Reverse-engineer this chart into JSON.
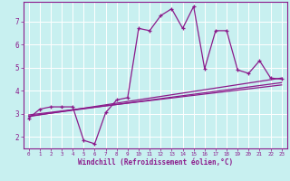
{
  "xlabel": "Windchill (Refroidissement éolien,°C)",
  "xlim": [
    -0.5,
    23.5
  ],
  "ylim": [
    1.5,
    7.85
  ],
  "yticks": [
    2,
    3,
    4,
    5,
    6,
    7
  ],
  "xticks": [
    0,
    1,
    2,
    3,
    4,
    5,
    6,
    7,
    8,
    9,
    10,
    11,
    12,
    13,
    14,
    15,
    16,
    17,
    18,
    19,
    20,
    21,
    22,
    23
  ],
  "bg_color": "#c8f0f0",
  "line_color": "#8b1a8b",
  "grid_color": "#ffffff",
  "main_series_x": [
    0,
    1,
    2,
    3,
    4,
    5,
    6,
    7,
    8,
    9,
    10,
    11,
    12,
    13,
    14,
    15,
    16,
    17,
    18,
    19,
    20,
    21,
    22,
    23
  ],
  "main_series_y": [
    2.8,
    3.2,
    3.3,
    3.3,
    3.3,
    1.85,
    1.7,
    3.05,
    3.6,
    3.7,
    6.7,
    6.6,
    7.25,
    7.55,
    6.7,
    7.65,
    4.95,
    6.6,
    6.6,
    4.9,
    4.75,
    5.3,
    4.55,
    4.5
  ],
  "trend_lines": [
    {
      "x0": 0,
      "y0": 2.88,
      "x1": 23,
      "y1": 4.55
    },
    {
      "x0": 0,
      "y0": 2.9,
      "x1": 23,
      "y1": 4.35
    },
    {
      "x0": 0,
      "y0": 2.95,
      "x1": 23,
      "y1": 4.25
    }
  ]
}
